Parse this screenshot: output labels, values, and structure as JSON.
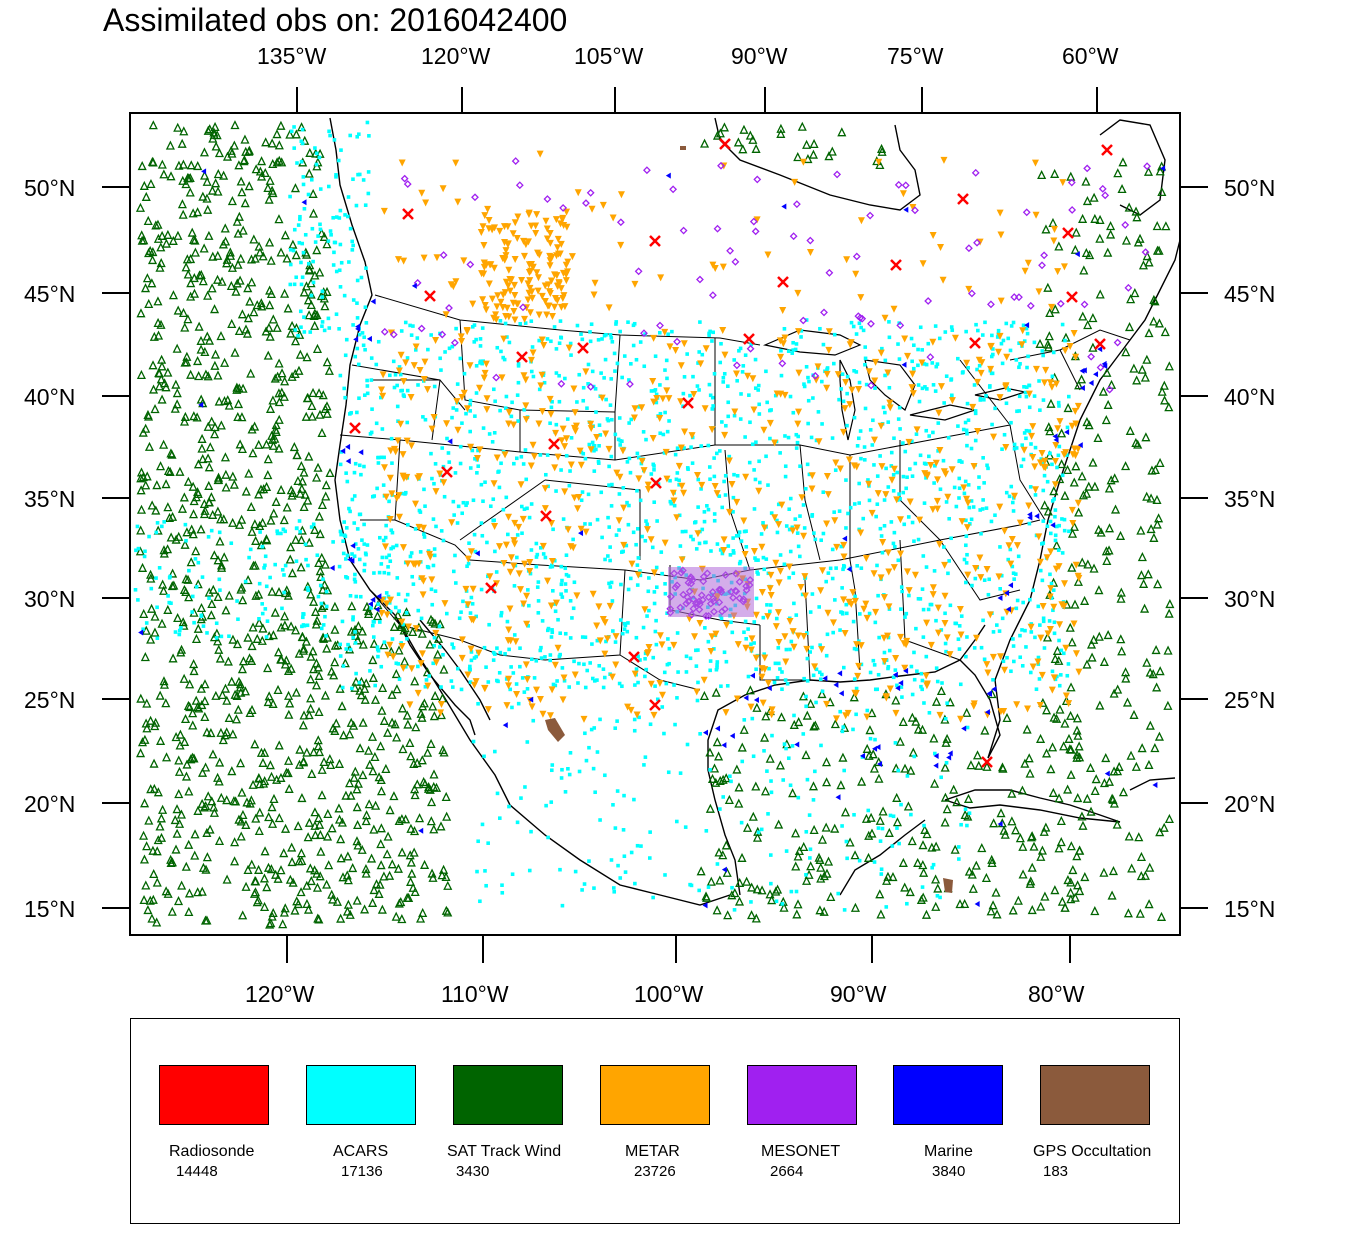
{
  "title": "Assimilated obs on: 2016042400",
  "map": {
    "top_lon_labels": [
      "135°W",
      "120°W",
      "105°W",
      "90°W",
      "75°W",
      "60°W"
    ],
    "bottom_lon_labels": [
      "120°W",
      "110°W",
      "100°W",
      "90°W",
      "80°W"
    ],
    "lat_labels": [
      "50°N",
      "45°N",
      "40°N",
      "35°N",
      "30°N",
      "25°N",
      "20°N",
      "15°N"
    ],
    "lat_values": [
      50,
      45,
      40,
      35,
      30,
      25,
      20,
      15
    ],
    "bottom_lon_values": [
      -120,
      -110,
      -100,
      -90,
      -80
    ],
    "top_lon_values": [
      -135,
      -120,
      -105,
      -90,
      -75,
      -60
    ]
  },
  "legend": [
    {
      "name": "Radiosonde",
      "count": "14448",
      "color": "#ff0000",
      "marker": "x-icon"
    },
    {
      "name": "ACARS",
      "count": "17136",
      "color": "#00ffff",
      "marker": "square-dot-icon"
    },
    {
      "name": "SAT Track Wind",
      "count": "3430",
      "color": "#006400",
      "marker": "triangle-up-icon"
    },
    {
      "name": "METAR",
      "count": "23726",
      "color": "#ffa500",
      "marker": "triangle-down-icon"
    },
    {
      "name": "MESONET",
      "count": "2664",
      "color": "#a020f0",
      "marker": "diamond-icon"
    },
    {
      "name": "Marine",
      "count": "3840",
      "color": "#0000ff",
      "marker": "left-triangle-icon"
    },
    {
      "name": "GPS Occultation",
      "count": "183",
      "color": "#8b5a3c",
      "marker": "blob-icon"
    }
  ],
  "colors": {
    "frame": "#000000",
    "coast": "#000000"
  }
}
